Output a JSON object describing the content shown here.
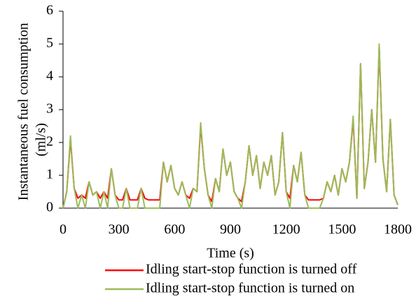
{
  "chart_data": {
    "type": "line",
    "x_label": "Time (s)",
    "y_label": [
      "Instantaneous fuel consumption",
      "(ml/s)"
    ],
    "x": [
      0,
      20,
      40,
      60,
      80,
      100,
      120,
      140,
      160,
      180,
      200,
      220,
      240,
      260,
      280,
      300,
      320,
      340,
      360,
      380,
      400,
      420,
      440,
      460,
      480,
      500,
      520,
      540,
      560,
      580,
      600,
      620,
      640,
      660,
      680,
      700,
      720,
      740,
      760,
      780,
      800,
      820,
      840,
      860,
      880,
      900,
      920,
      940,
      960,
      980,
      1000,
      1020,
      1040,
      1060,
      1080,
      1100,
      1120,
      1140,
      1160,
      1180,
      1200,
      1220,
      1240,
      1260,
      1280,
      1300,
      1320,
      1340,
      1360,
      1380,
      1400,
      1420,
      1440,
      1460,
      1480,
      1500,
      1520,
      1540,
      1560,
      1580,
      1600,
      1620,
      1640,
      1660,
      1680,
      1700,
      1720,
      1740,
      1760,
      1780,
      1800
    ],
    "series": [
      {
        "name": "Idling start-stop function is turned off",
        "color": "#ff0000",
        "values": [
          0,
          0.5,
          2.1,
          0.6,
          0.3,
          0.4,
          0.3,
          0.8,
          0.4,
          0.5,
          0.3,
          0.5,
          0.3,
          1.2,
          0.4,
          0.25,
          0.25,
          0.6,
          0.25,
          0.25,
          0.25,
          0.6,
          0.3,
          0.25,
          0.25,
          0.25,
          0.25,
          1.4,
          0.8,
          1.3,
          0.6,
          0.4,
          0.8,
          0.4,
          0.3,
          0.6,
          0.5,
          2.5,
          1.2,
          0.4,
          0.2,
          0.9,
          0.5,
          1.8,
          1.0,
          1.4,
          0.5,
          0.3,
          0.2,
          0.8,
          1.9,
          1.0,
          1.6,
          0.6,
          1.4,
          1.0,
          1.6,
          0.4,
          0.8,
          2.3,
          0.5,
          0.3,
          1.3,
          0.8,
          1.7,
          0.4,
          0.25,
          0.25,
          0.25,
          0.25,
          0.3,
          0.8,
          0.5,
          1.0,
          0.4,
          1.2,
          0.8,
          1.4,
          2.7,
          0.3,
          4.4,
          0.6,
          1.4,
          3.0,
          1.4,
          4.9,
          1.5,
          0.5,
          2.7,
          0.4,
          0.1
        ]
      },
      {
        "name": "Idling start-stop function is turned on",
        "color": "#9bbb59",
        "values": [
          0,
          0.5,
          2.2,
          0.6,
          0,
          0.4,
          0,
          0.8,
          0.4,
          0.5,
          0,
          0.5,
          0,
          1.2,
          0.4,
          0,
          0,
          0.6,
          0,
          0,
          0,
          0.6,
          0,
          0,
          0,
          0,
          0,
          1.4,
          0.8,
          1.3,
          0.6,
          0.4,
          0.8,
          0.4,
          0,
          0.6,
          0.5,
          2.6,
          1.2,
          0.4,
          0,
          0.9,
          0.5,
          1.8,
          1.0,
          1.4,
          0.5,
          0.3,
          0,
          0.8,
          1.9,
          1.0,
          1.6,
          0.6,
          1.4,
          1.0,
          1.6,
          0.4,
          0.8,
          2.3,
          0.5,
          0,
          1.3,
          0.8,
          1.7,
          0.4,
          0,
          0,
          0,
          0,
          0.3,
          0.8,
          0.5,
          1.0,
          0.4,
          1.2,
          0.8,
          1.4,
          2.8,
          0.3,
          4.4,
          0.6,
          1.4,
          3.0,
          1.4,
          5.0,
          1.5,
          0.5,
          2.7,
          0.4,
          0.1
        ]
      }
    ],
    "xlim": [
      0,
      1800
    ],
    "xticks": [
      0,
      300,
      600,
      900,
      1200,
      1500,
      1800
    ],
    "ylim": [
      0,
      6
    ],
    "yticks": [
      0,
      1,
      2,
      3,
      4,
      5,
      6
    ],
    "grid": false
  }
}
